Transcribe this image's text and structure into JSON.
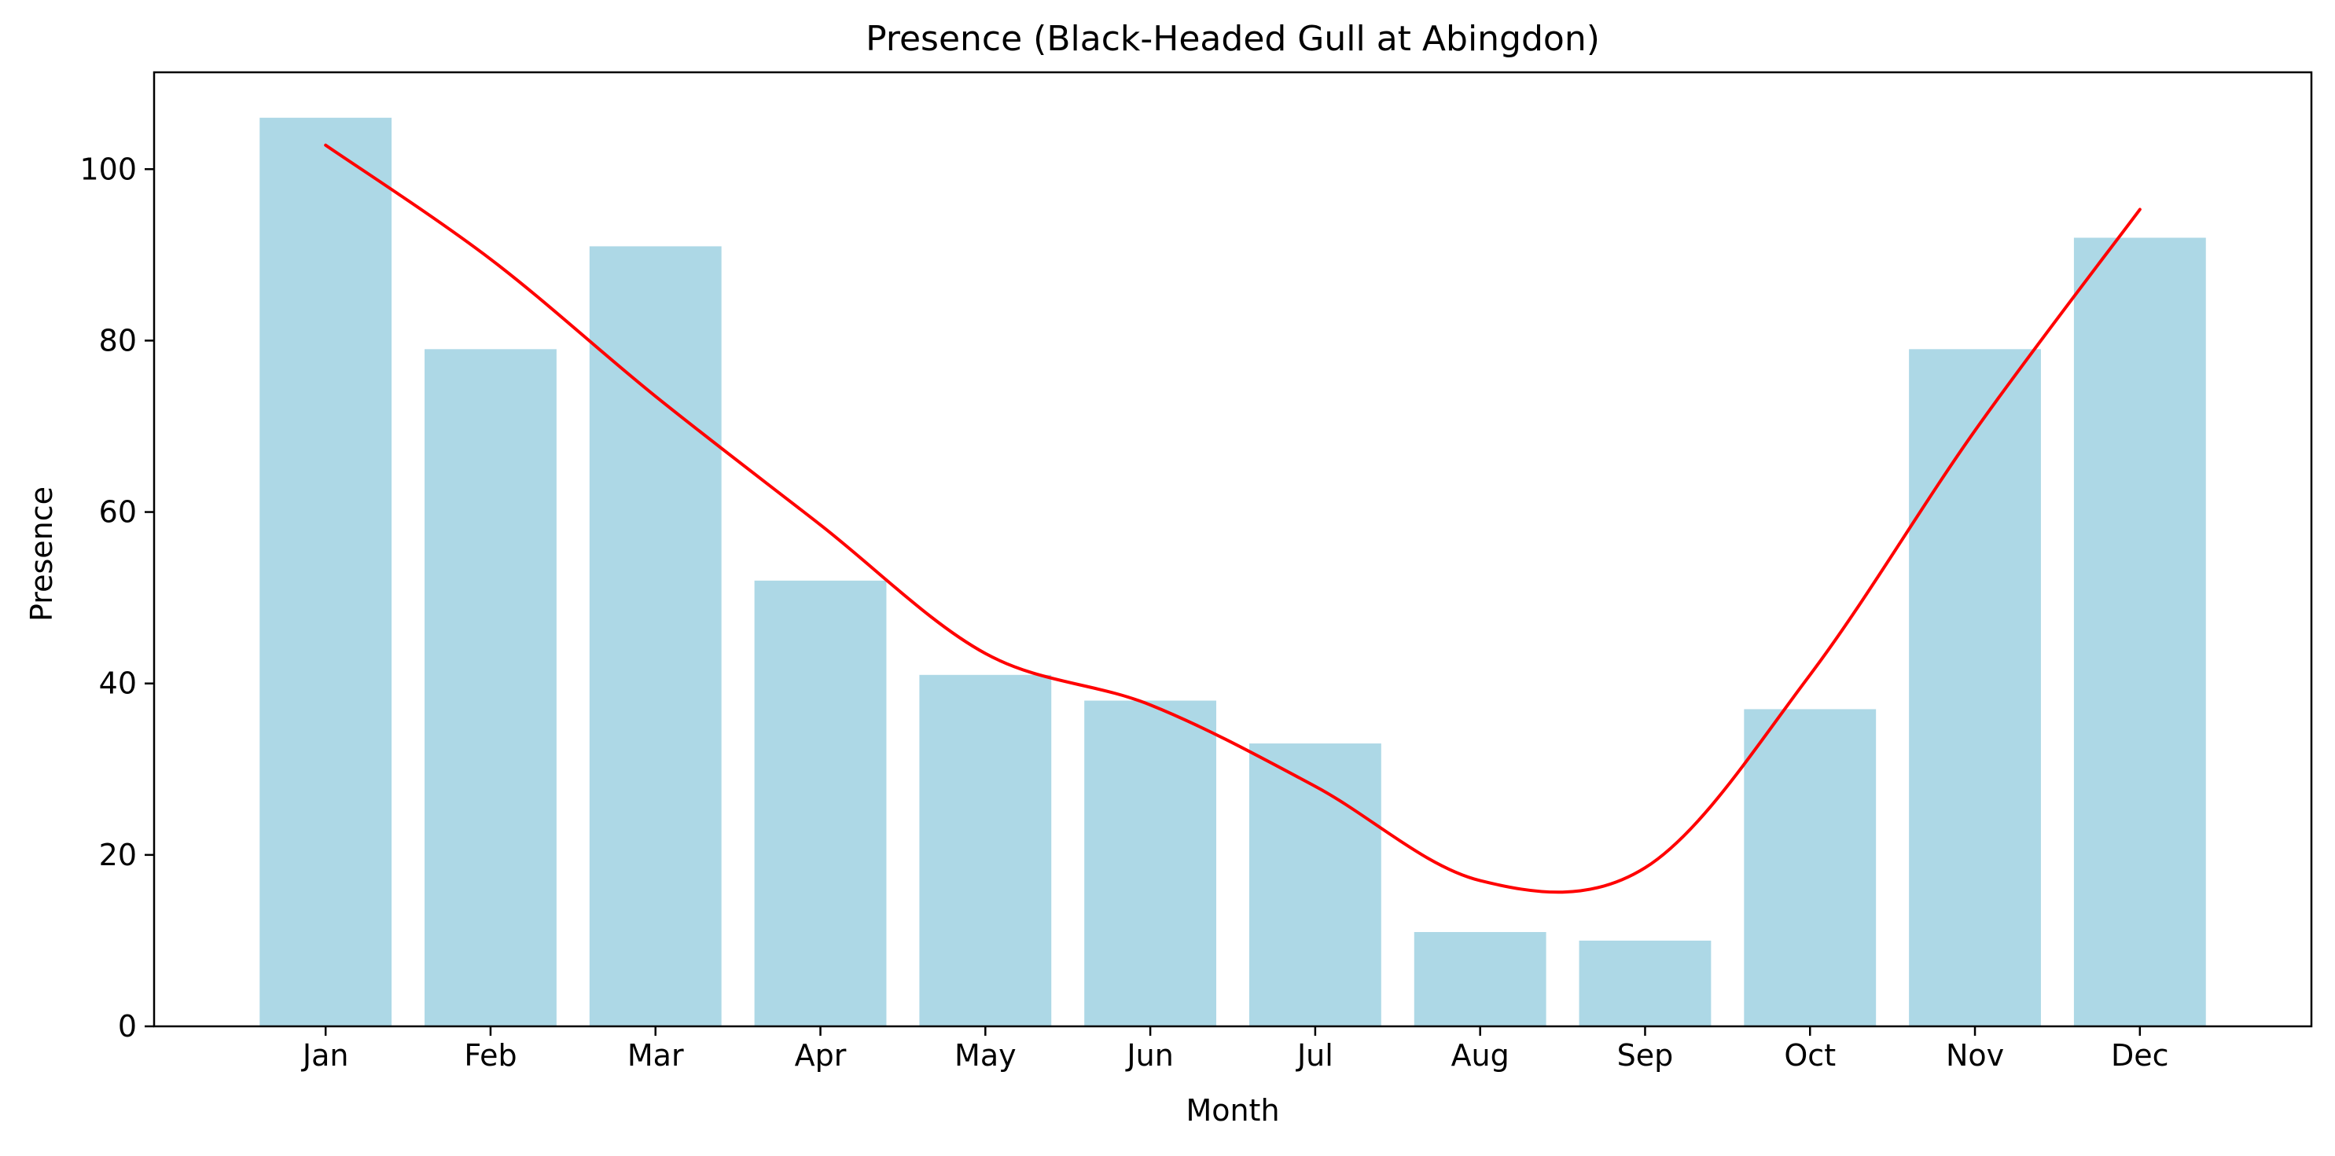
{
  "chart_data": {
    "type": "bar",
    "title": "Presence (Black-Headed Gull at Abingdon)",
    "xlabel": "Month",
    "ylabel": "Presence",
    "categories": [
      "Jan",
      "Feb",
      "Mar",
      "Apr",
      "May",
      "Jun",
      "Jul",
      "Aug",
      "Sep",
      "Oct",
      "Nov",
      "Dec"
    ],
    "series": [
      {
        "type": "bar",
        "values": [
          106,
          79,
          91,
          52,
          41,
          38,
          33,
          11,
          10,
          37,
          79,
          92
        ],
        "color": "#add8e6"
      },
      {
        "type": "line",
        "values": [
          102.8,
          89.5,
          73.5,
          58.5,
          43.5,
          37.5,
          28,
          17,
          18.5,
          41,
          69.5,
          95.3
        ],
        "color": "#ff0000"
      }
    ],
    "ylim": [
      0,
      111.3
    ],
    "yticks": [
      0,
      20,
      40,
      60,
      80,
      100
    ],
    "grid": false,
    "legend": "none"
  }
}
